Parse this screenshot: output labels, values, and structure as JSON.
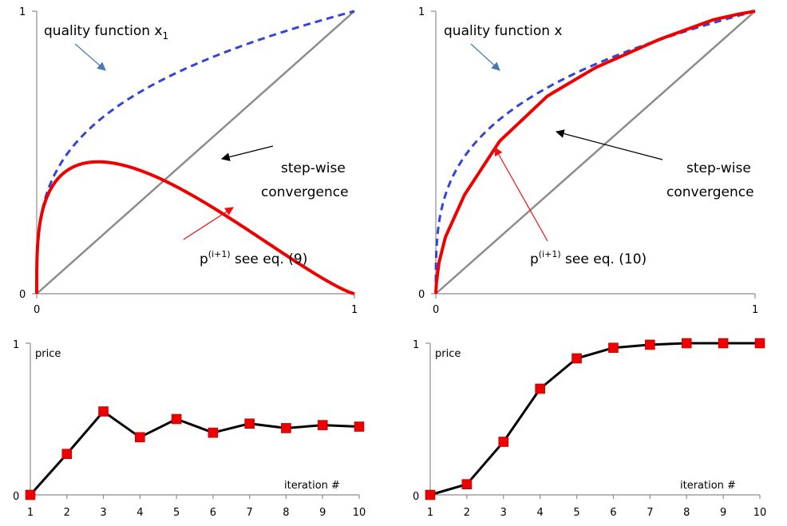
{
  "chart_data": [
    {
      "id": "cobweb-left",
      "type": "line",
      "xlim": [
        0,
        1
      ],
      "ylim": [
        0,
        1
      ],
      "x_ticks": [
        "0",
        "1"
      ],
      "y_ticks": [
        "0",
        "1"
      ],
      "annotations": {
        "quality": {
          "text": "quality function x",
          "sub": "1"
        },
        "convergence": {
          "line1": "step-wise",
          "line2": "convergence"
        },
        "map": {
          "base": "p",
          "sup": "(i+1)",
          "rest": "  see eq. (9)"
        }
      },
      "quality_curve": {
        "formula": "x^0.3",
        "color": "#3344dd",
        "style": "dashed"
      },
      "map_curve": {
        "formula": "x^0.3 * (1 - x)^1.25",
        "color": "#ee0000"
      },
      "diagonal": {
        "color": "#8c8c8c"
      },
      "cobweb_start": 0
    },
    {
      "id": "cobweb-right",
      "type": "line",
      "xlim": [
        0,
        1
      ],
      "ylim": [
        0,
        1
      ],
      "x_ticks": [
        "0",
        "1"
      ],
      "y_ticks": [
        "0",
        "1"
      ],
      "annotations": {
        "quality": {
          "text": "quality function x",
          "sub": ""
        },
        "convergence": {
          "line1": "step-wise",
          "line2": "convergence"
        },
        "map": {
          "base": "p",
          "sup": "(i+1)",
          "rest": "  see eq. (10)"
        }
      },
      "quality_curve": {
        "formula": "x^0.3",
        "color": "#3344dd",
        "style": "dashed"
      },
      "map_curve": {
        "formula": "1 - (1 - x)^2.4 ... concave through (0.09,0.35),(0.35,0.7),(0.7,0.9)",
        "color": "#ee0000"
      },
      "diagonal": {
        "color": "#8c8c8c"
      },
      "cobweb_start": 0
    },
    {
      "id": "price-left",
      "type": "line",
      "x": [
        1,
        2,
        3,
        4,
        5,
        6,
        7,
        8,
        9,
        10
      ],
      "values": [
        0,
        0.27,
        0.55,
        0.38,
        0.5,
        0.41,
        0.47,
        0.44,
        0.46,
        0.45
      ],
      "xlim": [
        1,
        10
      ],
      "ylim": [
        0,
        1
      ],
      "ylabel": "price",
      "xlabel": "iteration #",
      "y_ticks": [
        "0",
        "1"
      ],
      "marker": "square",
      "marker_color": "#ee0000"
    },
    {
      "id": "price-right",
      "type": "line",
      "x": [
        1,
        2,
        3,
        4,
        5,
        6,
        7,
        8,
        9,
        10
      ],
      "values": [
        0,
        0.07,
        0.35,
        0.7,
        0.9,
        0.97,
        0.99,
        1.0,
        1.0,
        1.0
      ],
      "xlim": [
        1,
        10
      ],
      "ylim": [
        0,
        1
      ],
      "ylabel": "price",
      "xlabel": "iteration #",
      "y_ticks": [
        "0",
        "1"
      ],
      "marker": "square",
      "marker_color": "#ee0000"
    }
  ]
}
